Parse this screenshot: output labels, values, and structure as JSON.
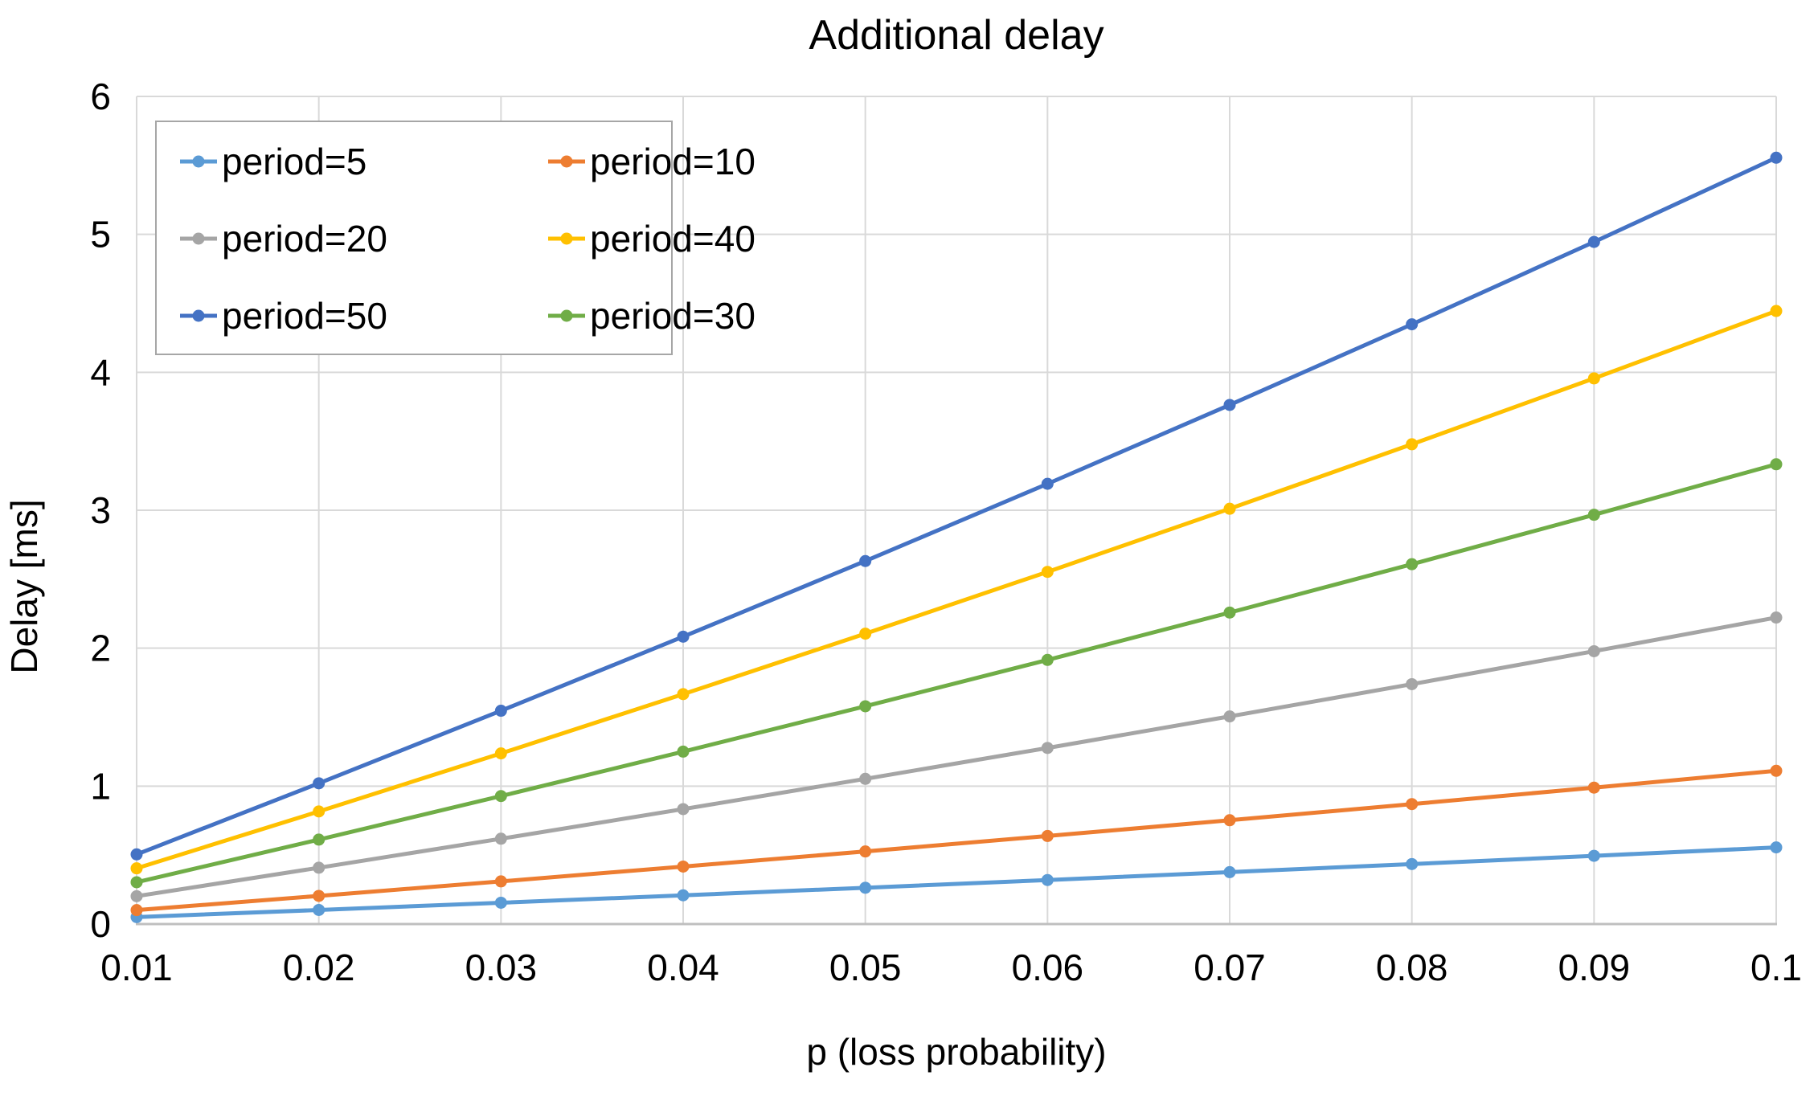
{
  "chart_data": {
    "type": "line",
    "title": "Additional delay",
    "xlabel": "p (loss probability)",
    "ylabel": "Delay [ms]",
    "x": [
      0.01,
      0.02,
      0.03,
      0.04,
      0.05,
      0.06,
      0.07,
      0.08,
      0.09,
      0.1
    ],
    "x_tick_labels": [
      "0.01",
      "0.02",
      "0.03",
      "0.04",
      "0.05",
      "0.06",
      "0.07",
      "0.08",
      "0.09",
      "0.1"
    ],
    "y_tick_labels": [
      "0",
      "1",
      "2",
      "3",
      "4",
      "5",
      "6"
    ],
    "xlim": [
      0.01,
      0.1
    ],
    "ylim": [
      0,
      6
    ],
    "y_tick_step": 1,
    "grid": true,
    "legend_position": "top-left",
    "legend_columns": 2,
    "series": [
      {
        "name": "period=5",
        "color": "#5B9BD5",
        "values": [
          0.0505,
          0.102,
          0.1546,
          0.2083,
          0.2632,
          0.3191,
          0.3763,
          0.4348,
          0.4945,
          0.5556
        ]
      },
      {
        "name": "period=10",
        "color": "#ED7D31",
        "values": [
          0.101,
          0.2041,
          0.3093,
          0.4167,
          0.5263,
          0.6383,
          0.7527,
          0.8696,
          0.989,
          1.1111
        ]
      },
      {
        "name": "period=20",
        "color": "#A5A5A5",
        "values": [
          0.202,
          0.4082,
          0.6186,
          0.8333,
          1.0526,
          1.2766,
          1.5054,
          1.7391,
          1.978,
          2.2222
        ]
      },
      {
        "name": "period=40",
        "color": "#FFC000",
        "values": [
          0.404,
          0.8163,
          1.2371,
          1.6667,
          2.1053,
          2.5532,
          3.0108,
          3.4783,
          3.956,
          4.4444
        ]
      },
      {
        "name": "period=50",
        "color": "#4472C4",
        "values": [
          0.5051,
          1.0204,
          1.5464,
          2.0833,
          2.6316,
          3.1915,
          3.7634,
          4.3478,
          4.9451,
          5.5556
        ]
      },
      {
        "name": "period=30",
        "color": "#70AD47",
        "values": [
          0.303,
          0.6122,
          0.9278,
          1.25,
          1.5789,
          1.9149,
          2.2581,
          2.6087,
          2.967,
          3.3333
        ]
      }
    ]
  },
  "colors": {
    "gridline": "#D9D9D9",
    "axis_line": "#BFBFBF",
    "legend_border": "#A6A6A6",
    "text": "#000000",
    "background": "#FFFFFF"
  }
}
